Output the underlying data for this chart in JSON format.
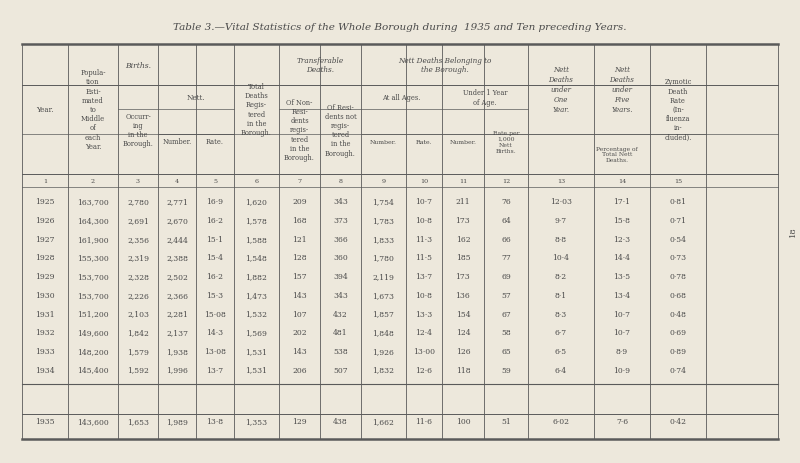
{
  "title": "Table 3.—Vital Statistics of the Whole Borough during  1935 and Ten preceding Years.",
  "bg_color": "#ede8dc",
  "text_color": "#4a4a4a",
  "data_rows": [
    [
      "1925",
      "163,700",
      "2,780",
      "2,771",
      "16·9",
      "1,620",
      "209",
      "343",
      "1,754",
      "10·7",
      "211",
      "76",
      "12·03",
      "17·1",
      "0·81"
    ],
    [
      "1926",
      "164,300",
      "2,691",
      "2,670",
      "16·2",
      "1,578",
      "168",
      "373",
      "1,783",
      "10·8",
      "173",
      "64",
      "9·7",
      "15·8",
      "0·71"
    ],
    [
      "1927",
      "161,900",
      "2,356",
      "2,444",
      "15·1",
      "1,588",
      "121",
      "366",
      "1,833",
      "11·3",
      "162",
      "66",
      "8·8",
      "12·3",
      "0·54"
    ],
    [
      "1928",
      "155,300",
      "2,319",
      "2,388",
      "15·4",
      "1,548",
      "128",
      "360",
      "1,780",
      "11·5",
      "185",
      "77",
      "10·4",
      "14·4",
      "0·73"
    ],
    [
      "1929",
      "153,700",
      "2,328",
      "2,502",
      "16·2",
      "1,882",
      "157",
      "394",
      "2,119",
      "13·7",
      "173",
      "69",
      "8·2",
      "13·5",
      "0·78"
    ],
    [
      "1930",
      "153,700",
      "2,226",
      "2,366",
      "15·3",
      "1,473",
      "143",
      "343",
      "1,673",
      "10·8",
      "136",
      "57",
      "8·1",
      "13·4",
      "0·68"
    ],
    [
      "1931",
      "151,200",
      "2,103",
      "2,281",
      "15·08",
      "1,532",
      "107",
      "432",
      "1,857",
      "13·3",
      "154",
      "67",
      "8·3",
      "10·7",
      "0·48"
    ],
    [
      "1932",
      "149,600",
      "1,842",
      "2,137",
      "14·3",
      "1,569",
      "202",
      "481",
      "1,848",
      "12·4",
      "124",
      "58",
      "6·7",
      "10·7",
      "0·69"
    ],
    [
      "1933",
      "148,200",
      "1,579",
      "1,938",
      "13·08",
      "1,531",
      "143",
      "538",
      "1,926",
      "13·00",
      "126",
      "65",
      "6·5",
      "8·9",
      "0·89"
    ],
    [
      "1934",
      "145,400",
      "1,592",
      "1,996",
      "13·7",
      "1,531",
      "206",
      "507",
      "1,832",
      "12·6",
      "118",
      "59",
      "6·4",
      "10·9",
      "0·74"
    ]
  ],
  "last_row": [
    "1935",
    "143,600",
    "1,653",
    "1,989",
    "13·8",
    "1,353",
    "129",
    "438",
    "1,662",
    "11·6",
    "100",
    "51",
    "6·02",
    "7·6",
    "0·42"
  ]
}
